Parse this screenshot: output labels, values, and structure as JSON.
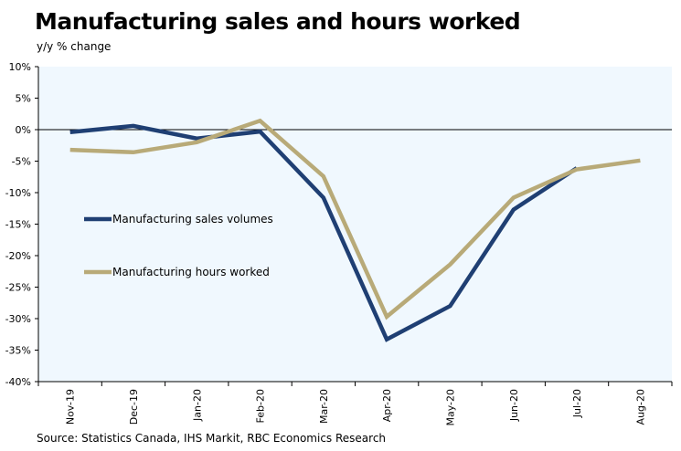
{
  "chart_data": {
    "type": "line",
    "title": "Manufacturing sales and hours worked",
    "subtitle": "y/y % change",
    "source": "Source: Statistics Canada, IHS Markit, RBC Economics Research",
    "categories": [
      "Nov-19",
      "Dec-19",
      "Jan-20",
      "Feb-20",
      "Mar-20",
      "Apr-20",
      "May-20",
      "Jun-20",
      "Jul-20",
      "Aug-20"
    ],
    "ylim": [
      -40,
      10
    ],
    "yticks": [
      10,
      5,
      0,
      -5,
      -10,
      -15,
      -20,
      -25,
      -30,
      -35,
      -40
    ],
    "ytick_labels": [
      "10%",
      "5%",
      "0%",
      "-5%",
      "-10%",
      "-15%",
      "-20%",
      "-25%",
      "-30%",
      "-35%",
      "-40%"
    ],
    "legend_position": "left-middle",
    "series": [
      {
        "name": "Manufacturing sales volumes",
        "color": "#1f3f73",
        "values": [
          -0.4,
          0.6,
          -1.4,
          -0.3,
          -10.8,
          -33.3,
          -28.0,
          -12.7,
          -6.1,
          null
        ]
      },
      {
        "name": "Manufacturing hours worked",
        "color": "#b8aa78",
        "values": [
          -3.2,
          -3.6,
          -2.0,
          1.4,
          -7.4,
          -29.7,
          -21.4,
          -10.8,
          -6.3,
          -4.9
        ]
      }
    ],
    "background": "#f0f8fe"
  }
}
